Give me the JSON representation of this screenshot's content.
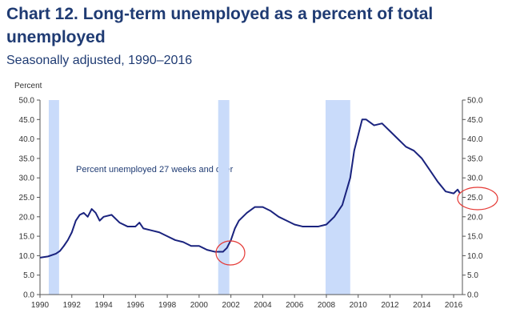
{
  "chart_data": {
    "type": "line",
    "title_line1": "Chart 12. Long-term unemployed as a percent of total",
    "title_line2": "unemployed",
    "subtitle": "Seasonally adjusted, 1990–2016",
    "y_axis_label": "Percent",
    "annotation": "Percent unemployed 27 weeks and over",
    "color": "#1a237e",
    "recession_color": "#c9dbfa",
    "recessions": [
      [
        1990.55,
        1991.2
      ],
      [
        2001.2,
        2001.9
      ],
      [
        2007.95,
        2009.5
      ]
    ],
    "x": [
      1990.0,
      1990.5,
      1991.0,
      1991.25,
      1991.5,
      1991.75,
      1992.0,
      1992.25,
      1992.5,
      1992.75,
      1993.0,
      1993.25,
      1993.5,
      1993.75,
      1994.0,
      1994.5,
      1995.0,
      1995.5,
      1996.0,
      1996.25,
      1996.5,
      1997.0,
      1997.5,
      1998.0,
      1998.5,
      1999.0,
      1999.5,
      2000.0,
      2000.5,
      2001.0,
      2001.5,
      2001.75,
      2002.0,
      2002.25,
      2002.5,
      2003.0,
      2003.5,
      2004.0,
      2004.5,
      2005.0,
      2005.5,
      2006.0,
      2006.5,
      2007.0,
      2007.5,
      2008.0,
      2008.5,
      2009.0,
      2009.5,
      2009.75,
      2010.0,
      2010.25,
      2010.5,
      2011.0,
      2011.5,
      2012.0,
      2012.5,
      2013.0,
      2013.5,
      2014.0,
      2014.5,
      2015.0,
      2015.5,
      2016.0,
      2016.25,
      2016.4
    ],
    "values": [
      9.5,
      9.8,
      10.5,
      11.2,
      12.5,
      14,
      16,
      19,
      20.5,
      21,
      20,
      22,
      21,
      19,
      20,
      20.5,
      18.5,
      17.5,
      17.5,
      18.5,
      17,
      16.5,
      16,
      15,
      14,
      13.5,
      12.5,
      12.5,
      11.5,
      11,
      11,
      12,
      14,
      17,
      19,
      21,
      22.5,
      22.5,
      21.5,
      20,
      19,
      18,
      17.5,
      17.5,
      17.5,
      18,
      20,
      23,
      30,
      37,
      41,
      45,
      45,
      43.5,
      44,
      42,
      40,
      38,
      37,
      35,
      32,
      29,
      26.5,
      26,
      27,
      26
    ],
    "xlim": [
      1990,
      2016.55
    ],
    "xticks": [
      1990,
      1992,
      1994,
      1996,
      1998,
      2000,
      2002,
      2004,
      2006,
      2008,
      2010,
      2012,
      2014,
      2016
    ],
    "ylim": [
      0,
      50
    ],
    "yticks": [
      {
        "value": 0,
        "label": "0.0"
      },
      {
        "value": 5,
        "label": "5.0"
      },
      {
        "value": 10,
        "label": "10.0"
      },
      {
        "value": 15,
        "label": "15.0"
      },
      {
        "value": 20,
        "label": "20.0"
      },
      {
        "value": 25,
        "label": "25.0"
      },
      {
        "value": 30,
        "label": "30.0"
      },
      {
        "value": 35,
        "label": "35.0"
      },
      {
        "value": 40,
        "label": "40.0"
      },
      {
        "value": 45,
        "label": "45.0"
      },
      {
        "value": 50,
        "label": "50.0"
      }
    ],
    "y2lim": [
      0,
      50
    ],
    "y2ticks": [
      {
        "value": 0,
        "label": "0.0"
      },
      {
        "value": 5,
        "label": "5.0"
      },
      {
        "value": 10,
        "label": "10.0"
      },
      {
        "value": 15,
        "label": "15.0"
      },
      {
        "value": 20,
        "label": "20.0"
      },
      {
        "value": 25,
        "label": "25.0"
      },
      {
        "value": 30,
        "label": "30.0"
      },
      {
        "value": 35,
        "label": "35.0"
      },
      {
        "value": 40,
        "label": "40.0"
      },
      {
        "value": 45,
        "label": "45.0"
      },
      {
        "value": 50,
        "label": "50.0"
      }
    ],
    "grid": false
  }
}
